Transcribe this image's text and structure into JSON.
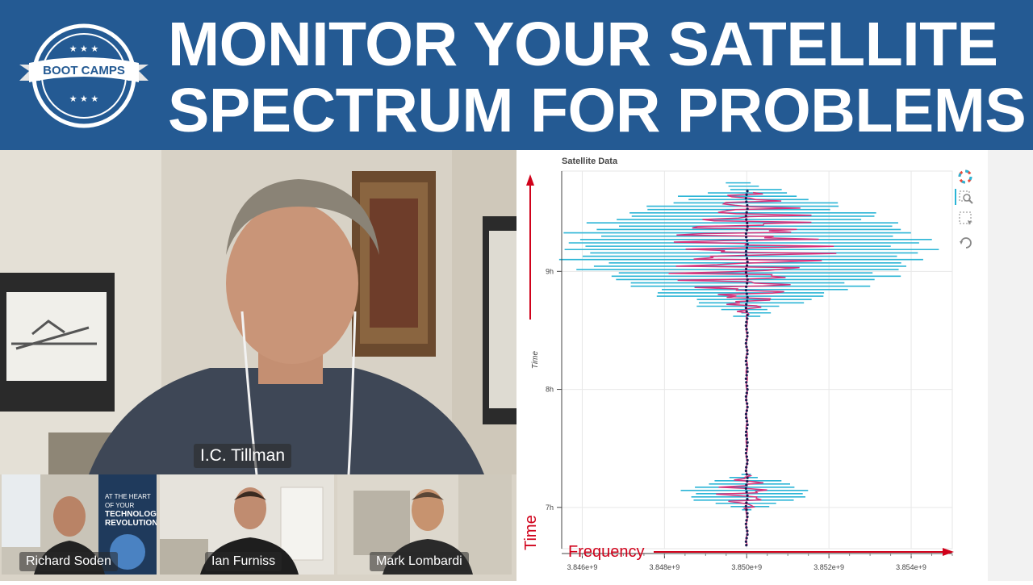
{
  "banner": {
    "logo_text": "BOOT CAMPS",
    "headline_line1": "MONITOR YOUR SATELLITE",
    "headline_line2": "SPECTRUM FOR PROBLEMS"
  },
  "video": {
    "main_speaker": "I.C. Tillman",
    "participants": [
      {
        "name": "Richard Soden"
      },
      {
        "name": "Ian Furniss"
      },
      {
        "name": "Mark Lombardi"
      }
    ],
    "book_cover_lines": [
      "AT THE HEART",
      "OF YOUR",
      "TECHNOLOGY",
      "REVOLUTION"
    ]
  },
  "annotations": {
    "time_label": "Time",
    "frequency_label": "Frequency",
    "color": "#d0021b"
  },
  "toolbar": {
    "icons": [
      "bokeh-logo-icon",
      "box-zoom-icon",
      "box-select-icon",
      "reset-icon"
    ]
  },
  "chart_data": {
    "type": "line",
    "title": "Satellite Data",
    "xlabel": "",
    "ylabel": "Time",
    "x_ticks": [
      "3.846e+9",
      "3.848e+9",
      "3.850e+9",
      "3.852e+9",
      "3.854e+9"
    ],
    "y_ticks": [
      "7h",
      "8h",
      "9h"
    ],
    "xlim": [
      3845500000,
      3855000000
    ],
    "ylim_hours": [
      6.65,
      9.85
    ],
    "center_frequency": 3850000000,
    "series": [
      {
        "color": "#2bb5d6",
        "kind": "bandwidth-lines"
      },
      {
        "color": "#d6317a",
        "kind": "peak-trace"
      },
      {
        "color": "#1b1b4f",
        "kind": "center-markers"
      }
    ],
    "bursts": [
      {
        "start_h": 8.62,
        "end_h": 9.75,
        "peak_h": 9.2,
        "half_width_hz": 4600000
      },
      {
        "start_h": 6.98,
        "end_h": 7.28,
        "peak_h": 7.12,
        "half_width_hz": 1600000
      }
    ],
    "grid": true
  }
}
